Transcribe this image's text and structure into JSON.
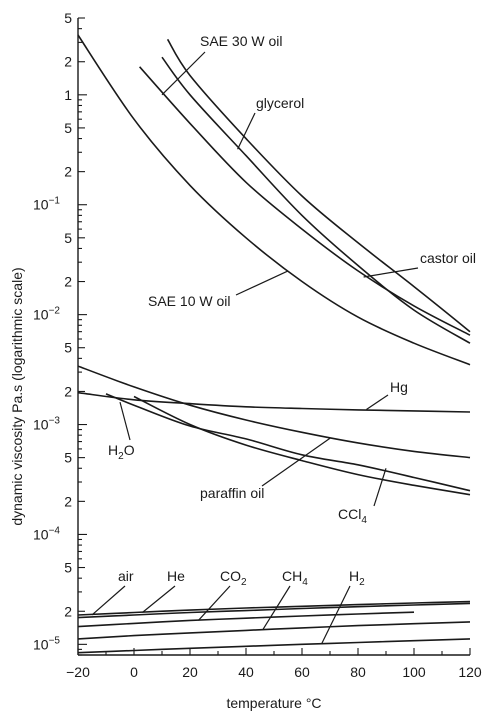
{
  "chart_data": {
    "type": "line",
    "title": "",
    "xlabel": "temperature °C",
    "ylabel": "dynamic viscosity Pa.s (logarithmic scale)",
    "xlim": [
      -20,
      120
    ],
    "ylim": [
      8e-06,
      5
    ],
    "y_scale": "log",
    "grid": false,
    "legend": "none (curves labelled directly)",
    "x_ticks": [
      "−20",
      "0",
      "20",
      "40",
      "60",
      "80",
      "100",
      "120"
    ],
    "x_tick_values": [
      -20,
      0,
      20,
      40,
      60,
      80,
      100,
      120
    ],
    "y_ticks": [
      {
        "value": 5,
        "base": "5"
      },
      {
        "value": 2,
        "base": "2"
      },
      {
        "value": 1,
        "base": "1"
      },
      {
        "value": 0.5,
        "base": "5"
      },
      {
        "value": 0.2,
        "base": "2"
      },
      {
        "value": 0.1,
        "base": "10",
        "exp": "−1"
      },
      {
        "value": 0.05,
        "base": "5"
      },
      {
        "value": 0.02,
        "base": "2"
      },
      {
        "value": 0.01,
        "base": "10",
        "exp": "−2"
      },
      {
        "value": 0.005,
        "base": "5"
      },
      {
        "value": 0.002,
        "base": "2"
      },
      {
        "value": 0.001,
        "base": "10",
        "exp": "−3"
      },
      {
        "value": 0.0005,
        "base": "5"
      },
      {
        "value": 0.0002,
        "base": "2"
      },
      {
        "value": 0.0001,
        "base": "10",
        "exp": "−4"
      },
      {
        "value": 5e-05,
        "base": "5"
      },
      {
        "value": 2e-05,
        "base": "2"
      },
      {
        "value": 1e-05,
        "base": "10",
        "exp": "−5"
      }
    ],
    "series": [
      {
        "id": "sae10",
        "name": "SAE 10 W oil",
        "x": [
          -20,
          0,
          20,
          40,
          60,
          80,
          100,
          120
        ],
        "y": [
          3.5,
          0.6,
          0.15,
          0.05,
          0.02,
          0.0095,
          0.0055,
          0.0035
        ]
      },
      {
        "id": "sae30",
        "name": "SAE 30 W oil",
        "x": [
          12,
          20,
          40,
          60,
          80,
          100,
          120
        ],
        "y": [
          3.2,
          1.5,
          0.4,
          0.12,
          0.045,
          0.018,
          0.007
        ]
      },
      {
        "id": "glycerol",
        "name": "glycerol",
        "x": [
          10,
          20,
          40,
          60,
          80,
          100,
          120
        ],
        "y": [
          2.2,
          1.0,
          0.28,
          0.08,
          0.028,
          0.011,
          0.0055
        ]
      },
      {
        "id": "castor",
        "name": "castor oil",
        "x": [
          2,
          20,
          40,
          60,
          80,
          100,
          120
        ],
        "y": [
          1.8,
          0.55,
          0.16,
          0.06,
          0.025,
          0.012,
          0.0065
        ]
      },
      {
        "id": "paraffin",
        "name": "paraffin oil",
        "x": [
          -20,
          0,
          20,
          40,
          60,
          80,
          100,
          120
        ],
        "y": [
          0.0034,
          0.0022,
          0.0015,
          0.0011,
          0.00085,
          0.00068,
          0.00057,
          0.0005
        ]
      },
      {
        "id": "hg",
        "name": "Hg",
        "x": [
          -20,
          0,
          20,
          40,
          60,
          80,
          100,
          120
        ],
        "y": [
          0.00195,
          0.00168,
          0.00155,
          0.00145,
          0.0014,
          0.00136,
          0.00133,
          0.0013
        ]
      },
      {
        "id": "ccl4",
        "name": "CCl4",
        "x": [
          -10,
          0,
          20,
          40,
          60,
          80,
          100,
          120
        ],
        "y": [
          0.0019,
          0.0015,
          0.00097,
          0.00074,
          0.00053,
          0.00043,
          0.00033,
          0.00025
        ]
      },
      {
        "id": "h2o",
        "name": "H2O",
        "x": [
          0,
          20,
          40,
          60,
          80,
          100,
          120
        ],
        "y": [
          0.0018,
          0.001,
          0.00065,
          0.00047,
          0.00035,
          0.00028,
          0.00023
        ]
      },
      {
        "id": "air",
        "name": "air",
        "x": [
          -20,
          0,
          20,
          40,
          60,
          80,
          100,
          120
        ],
        "y": [
          1.85e-05,
          1.95e-05,
          2.05e-05,
          2.14e-05,
          2.22e-05,
          2.3e-05,
          2.38e-05,
          2.45e-05
        ]
      },
      {
        "id": "he",
        "name": "He",
        "x": [
          -20,
          0,
          20,
          40,
          60,
          80,
          100,
          120
        ],
        "y": [
          1.75e-05,
          1.85e-05,
          1.95e-05,
          2.03e-05,
          2.12e-05,
          2.2e-05,
          2.28e-05,
          2.36e-05
        ]
      },
      {
        "id": "co2",
        "name": "CO2",
        "x": [
          -20,
          0,
          20,
          40,
          60,
          80,
          100
        ],
        "y": [
          1.45e-05,
          1.55e-05,
          1.65e-05,
          1.73e-05,
          1.81e-05,
          1.89e-05,
          1.96e-05
        ]
      },
      {
        "id": "ch4",
        "name": "CH4",
        "x": [
          -20,
          0,
          20,
          40,
          60,
          80,
          100,
          120
        ],
        "y": [
          1.12e-05,
          1.2e-05,
          1.27e-05,
          1.34e-05,
          1.41e-05,
          1.48e-05,
          1.54e-05,
          1.6e-05
        ]
      },
      {
        "id": "h2",
        "name": "H2",
        "x": [
          -20,
          0,
          20,
          40,
          60,
          80,
          100,
          120
        ],
        "y": [
          8.4e-06,
          8.8e-06,
          9.2e-06,
          9.6e-06,
          1e-05,
          1.04e-05,
          1.08e-05,
          1.12e-05
        ]
      }
    ],
    "labels": [
      {
        "series": "sae30",
        "text": "SAE 30 W oil",
        "anchor_x": 10,
        "anchor_y": 1.0
      },
      {
        "series": "glycerol",
        "text": "glycerol",
        "anchor_x": 37,
        "anchor_y": 0.32
      },
      {
        "series": "castor",
        "text": "castor oil",
        "anchor_x": 82,
        "anchor_y": 0.022
      },
      {
        "series": "sae10",
        "text": "SAE 10 W oil",
        "anchor_x": 55,
        "anchor_y": 0.025
      },
      {
        "series": "hg",
        "text": "Hg",
        "anchor_x": 83,
        "anchor_y": 0.00137
      },
      {
        "series": "h2o",
        "text": "H",
        "sub": "2",
        "tail": "O",
        "anchor_x": -5,
        "anchor_y": 0.0016
      },
      {
        "series": "paraffin",
        "text": "paraffin oil",
        "anchor_x": 70,
        "anchor_y": 0.00075
      },
      {
        "series": "ccl4",
        "text": "CCl",
        "sub": "4",
        "anchor_x": 90,
        "anchor_y": 0.0004
      },
      {
        "series": "air",
        "text": "air",
        "anchor_x": -15,
        "anchor_y": 1.85e-05
      },
      {
        "series": "he",
        "text": "He",
        "anchor_x": 3,
        "anchor_y": 1.95e-05
      },
      {
        "series": "co2",
        "text": "CO",
        "sub": "2",
        "anchor_x": 23,
        "anchor_y": 1.65e-05
      },
      {
        "series": "ch4",
        "text": "CH",
        "sub": "4",
        "anchor_x": 46,
        "anchor_y": 1.36e-05
      },
      {
        "series": "h2",
        "text": "H",
        "sub": "2",
        "anchor_x": 67,
        "anchor_y": 1.01e-05
      }
    ]
  }
}
